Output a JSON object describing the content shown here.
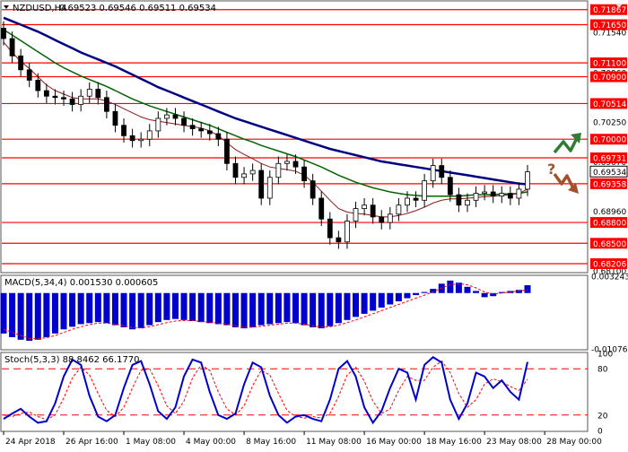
{
  "header": {
    "symbol": "NZDUSD,H4",
    "ohlc": "0.69523 0.69546 0.69511 0.69534",
    "expand_icon": "chevron-down-icon"
  },
  "macd_header": "MACD(5,34,4) 0.001530 0.000605",
  "stoch_header": "Stoch(5,3,3) 88.8462 66.1770",
  "colors": {
    "level_line": "#ff0000",
    "ma_fast": "#8b1a1a",
    "ma_mid": "#006400",
    "ma_slow": "#000080",
    "macd_hist": "#0000cc",
    "macd_signal": "#ff0000",
    "stoch_main": "#0000cc",
    "stoch_signal": "#ff0000",
    "label_bg": "#ff0000",
    "current_label_bg": "#ffffff",
    "arrow_up": "#2e7d32",
    "arrow_down": "#a0522d",
    "question_mark": "#a0522d"
  },
  "chart_data": [
    {
      "type": "candlestick",
      "title": "NZDUSD,H4",
      "ylim": [
        0.68103,
        0.7198
      ],
      "levels": [
        0.71867,
        0.7165,
        0.711,
        0.709,
        0.70514,
        0.7,
        0.69731,
        0.69358,
        0.688,
        0.685,
        0.68206
      ],
      "level_labels": [
        "0.71867",
        "0.71650",
        "0.71100",
        "0.70900",
        "0.70514",
        "0.70000",
        "0.69731",
        "0.69358",
        "0.68800",
        "0.68500",
        "0.68206"
      ],
      "axis_ticks": [
        "0.71540",
        "0.70960",
        "0.70250",
        "0.69670",
        "0.68960",
        "0.68100"
      ],
      "axis_tick_values": [
        0.7154,
        0.7096,
        0.7025,
        0.6967,
        0.6896,
        0.681
      ],
      "current_price": 0.69534,
      "current_price_label": "0.69534",
      "close": [
        0.7145,
        0.712,
        0.71,
        0.7085,
        0.707,
        0.7062,
        0.706,
        0.7058,
        0.705,
        0.7062,
        0.7072,
        0.706,
        0.704,
        0.702,
        0.7005,
        0.6998,
        0.7,
        0.7012,
        0.703,
        0.7035,
        0.703,
        0.702,
        0.7015,
        0.7012,
        0.7008,
        0.7,
        0.6965,
        0.6945,
        0.695,
        0.6955,
        0.6915,
        0.6945,
        0.6965,
        0.6968,
        0.696,
        0.694,
        0.6915,
        0.6885,
        0.6858,
        0.6852,
        0.6882,
        0.69,
        0.6905,
        0.6888,
        0.688,
        0.6892,
        0.6905,
        0.6915,
        0.6912,
        0.694,
        0.6962,
        0.6945,
        0.692,
        0.6905,
        0.6912,
        0.6922,
        0.6924,
        0.6918,
        0.6922,
        0.6915,
        0.6928,
        0.6953
      ],
      "ma_fast": [
        0.714,
        0.7125,
        0.7112,
        0.7102,
        0.709,
        0.7078,
        0.707,
        0.7065,
        0.706,
        0.7058,
        0.7058,
        0.7058,
        0.7055,
        0.705,
        0.7044,
        0.7038,
        0.7032,
        0.7028,
        0.7026,
        0.7024,
        0.7022,
        0.702,
        0.7018,
        0.7016,
        0.7012,
        0.7005,
        0.6995,
        0.6985,
        0.6978,
        0.6972,
        0.6965,
        0.696,
        0.6958,
        0.6956,
        0.6954,
        0.6948,
        0.6938,
        0.6925,
        0.6912,
        0.69,
        0.6895,
        0.6893,
        0.6892,
        0.689,
        0.6888,
        0.6888,
        0.689,
        0.6893,
        0.6897,
        0.6902,
        0.6908,
        0.6912,
        0.6914,
        0.6914,
        0.6915,
        0.6916,
        0.6917,
        0.6918,
        0.6919,
        0.692,
        0.6922,
        0.6928
      ],
      "ma_mid": [
        0.7158,
        0.715,
        0.7142,
        0.7134,
        0.7126,
        0.7118,
        0.711,
        0.7103,
        0.7097,
        0.7091,
        0.7086,
        0.7081,
        0.7076,
        0.707,
        0.7064,
        0.7058,
        0.7053,
        0.7048,
        0.7044,
        0.704,
        0.7036,
        0.7032,
        0.7028,
        0.7024,
        0.702,
        0.7015,
        0.701,
        0.7005,
        0.7,
        0.6996,
        0.6991,
        0.6987,
        0.6983,
        0.6979,
        0.6975,
        0.697,
        0.6965,
        0.696,
        0.6954,
        0.6948,
        0.6943,
        0.6938,
        0.6934,
        0.693,
        0.6927,
        0.6924,
        0.6922,
        0.692,
        0.6919,
        0.6918,
        0.6918,
        0.6918,
        0.6918,
        0.6918,
        0.6919,
        0.692,
        0.692,
        0.692,
        0.6921,
        0.6921,
        0.6922,
        0.6924
      ],
      "ma_slow": [
        0.7175,
        0.717,
        0.7165,
        0.716,
        0.7155,
        0.7149,
        0.7143,
        0.7137,
        0.7131,
        0.7125,
        0.712,
        0.7115,
        0.711,
        0.7105,
        0.7099,
        0.7093,
        0.7087,
        0.7081,
        0.7075,
        0.707,
        0.7065,
        0.706,
        0.7055,
        0.705,
        0.7045,
        0.704,
        0.7035,
        0.703,
        0.7026,
        0.7022,
        0.7018,
        0.7014,
        0.701,
        0.7006,
        0.7002,
        0.6998,
        0.6994,
        0.699,
        0.6986,
        0.6983,
        0.698,
        0.6977,
        0.6974,
        0.6971,
        0.6968,
        0.6966,
        0.6964,
        0.6962,
        0.696,
        0.6958,
        0.6956,
        0.6954,
        0.6952,
        0.695,
        0.6948,
        0.6946,
        0.6944,
        0.6942,
        0.694,
        0.6938,
        0.6936,
        0.6935
      ]
    },
    {
      "type": "bar",
      "title": "MACD(5,34,4)",
      "ylim": [
        -0.01076,
        0.00324
      ],
      "axis_ticks": [
        "0.003243",
        "-0.010763"
      ],
      "axis_tick_values": [
        0.003243,
        -0.010763
      ],
      "values": [
        -0.0078,
        -0.0085,
        -0.009,
        -0.0092,
        -0.009,
        -0.0085,
        -0.0078,
        -0.007,
        -0.0065,
        -0.006,
        -0.0058,
        -0.0056,
        -0.0058,
        -0.0062,
        -0.0066,
        -0.007,
        -0.0068,
        -0.0062,
        -0.0056,
        -0.0052,
        -0.005,
        -0.0052,
        -0.0054,
        -0.0056,
        -0.0058,
        -0.006,
        -0.0062,
        -0.0066,
        -0.0068,
        -0.0066,
        -0.0062,
        -0.006,
        -0.0058,
        -0.0056,
        -0.0058,
        -0.0062,
        -0.0066,
        -0.0068,
        -0.0064,
        -0.0058,
        -0.0052,
        -0.0046,
        -0.004,
        -0.0034,
        -0.0028,
        -0.0022,
        -0.0016,
        -0.001,
        -0.0004,
        0.0002,
        0.0008,
        0.0018,
        0.0024,
        0.002,
        0.0012,
        0.0004,
        -0.0008,
        -0.0006,
        0.0002,
        0.0004,
        0.0006,
        0.0015
      ],
      "signal": [
        -0.007,
        -0.0076,
        -0.0082,
        -0.0087,
        -0.0088,
        -0.0086,
        -0.0082,
        -0.0076,
        -0.007,
        -0.0065,
        -0.0061,
        -0.0058,
        -0.0058,
        -0.006,
        -0.0063,
        -0.0067,
        -0.0067,
        -0.0065,
        -0.0061,
        -0.0057,
        -0.0054,
        -0.0053,
        -0.0053,
        -0.0055,
        -0.0056,
        -0.0058,
        -0.006,
        -0.0063,
        -0.0066,
        -0.0066,
        -0.0064,
        -0.0062,
        -0.006,
        -0.0058,
        -0.0058,
        -0.006,
        -0.0063,
        -0.0066,
        -0.0065,
        -0.0062,
        -0.0057,
        -0.0052,
        -0.0046,
        -0.004,
        -0.0034,
        -0.0028,
        -0.0022,
        -0.0016,
        -0.001,
        -0.0004,
        0.0002,
        0.001,
        0.0016,
        0.0018,
        0.0016,
        0.001,
        0.0002,
        -0.0002,
        0.0,
        0.0002,
        0.0004,
        0.0006
      ]
    },
    {
      "type": "line",
      "title": "Stoch(5,3,3)",
      "ylim": [
        0,
        100
      ],
      "levels": [
        80,
        20
      ],
      "axis_ticks": [
        "100",
        "80",
        "20",
        "0"
      ],
      "axis_tick_values": [
        100,
        80,
        20,
        0
      ],
      "main": [
        15,
        22,
        28,
        18,
        10,
        12,
        35,
        70,
        92,
        85,
        45,
        18,
        12,
        20,
        55,
        85,
        90,
        60,
        25,
        15,
        30,
        70,
        92,
        88,
        50,
        20,
        15,
        22,
        60,
        88,
        82,
        45,
        20,
        10,
        18,
        20,
        15,
        12,
        40,
        80,
        90,
        70,
        30,
        10,
        25,
        55,
        80,
        75,
        40,
        85,
        95,
        88,
        40,
        15,
        35,
        75,
        70,
        55,
        65,
        50,
        40,
        88.8462
      ],
      "signal": [
        20,
        18,
        22,
        24,
        18,
        14,
        20,
        42,
        68,
        82,
        72,
        48,
        26,
        18,
        30,
        55,
        78,
        80,
        58,
        32,
        22,
        38,
        68,
        85,
        78,
        50,
        28,
        20,
        32,
        58,
        78,
        72,
        48,
        26,
        18,
        16,
        18,
        16,
        22,
        44,
        72,
        82,
        64,
        38,
        22,
        28,
        52,
        70,
        65,
        65,
        82,
        90,
        75,
        48,
        30,
        40,
        60,
        67,
        63,
        57,
        52,
        66.177
      ]
    }
  ],
  "x_axis": {
    "labels": [
      "24 Apr 2018",
      "26 Apr 16:00",
      "1 May 08:00",
      "4 May 00:00",
      "8 May 16:00",
      "11 May 08:00",
      "16 May 00:00",
      "18 May 16:00",
      "23 May 08:00",
      "28 May 00:00"
    ],
    "label_positions": [
      0,
      7,
      14,
      21,
      28,
      35,
      42,
      49,
      56,
      63
    ]
  },
  "annotations": {
    "question": "?",
    "up_arrow_icon": "zigzag-up-arrow-icon",
    "down_arrow_icon": "zigzag-down-arrow-icon"
  }
}
